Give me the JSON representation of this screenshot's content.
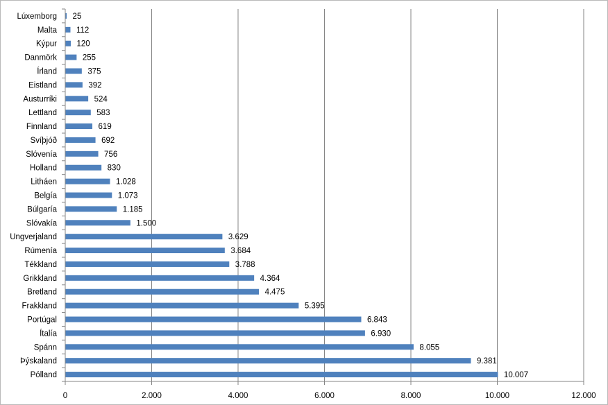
{
  "chart_data": {
    "type": "bar",
    "orientation": "horizontal",
    "title": "",
    "xlabel": "",
    "ylabel": "",
    "categories": [
      "Lúxemborg",
      "Malta",
      "Kýpur",
      "Danmörk",
      "Írland",
      "Eistland",
      "Austurríki",
      "Lettland",
      "Finnland",
      "Svíþjóð",
      "Slóvenía",
      "Holland",
      "Litháen",
      "Belgía",
      "Búlgaría",
      "Slóvakía",
      "Ungverjaland",
      "Rúmenía",
      "Tékkland",
      "Grikkland",
      "Bretland",
      "Frakkland",
      "Portúgal",
      "Ítalía",
      "Spánn",
      "Þýskaland",
      "Pólland"
    ],
    "values": [
      25,
      112,
      120,
      255,
      375,
      392,
      524,
      583,
      619,
      692,
      756,
      830,
      1028,
      1073,
      1185,
      1500,
      3629,
      3684,
      3788,
      4364,
      4475,
      5395,
      6843,
      6930,
      8055,
      9381,
      10007
    ],
    "value_labels": [
      "25",
      "112",
      "120",
      "255",
      "375",
      "392",
      "524",
      "583",
      "619",
      "692",
      "756",
      "830",
      "1.028",
      "1.073",
      "1.185",
      "1.500",
      "3.629",
      "3.684",
      "3.788",
      "4.364",
      "4.475",
      "5.395",
      "6.843",
      "6.930",
      "8.055",
      "9.381",
      "10.007"
    ],
    "xlim": [
      0,
      12000
    ],
    "x_ticks": [
      0,
      2000,
      4000,
      6000,
      8000,
      10000,
      12000
    ],
    "x_tick_labels": [
      "0",
      "2.000",
      "4.000",
      "6.000",
      "8.000",
      "10.000",
      "12.000"
    ],
    "grid": true,
    "legend": "none",
    "colors": {
      "bar": "#4f81bd",
      "grid": "#868686",
      "axis": "#868686"
    }
  }
}
